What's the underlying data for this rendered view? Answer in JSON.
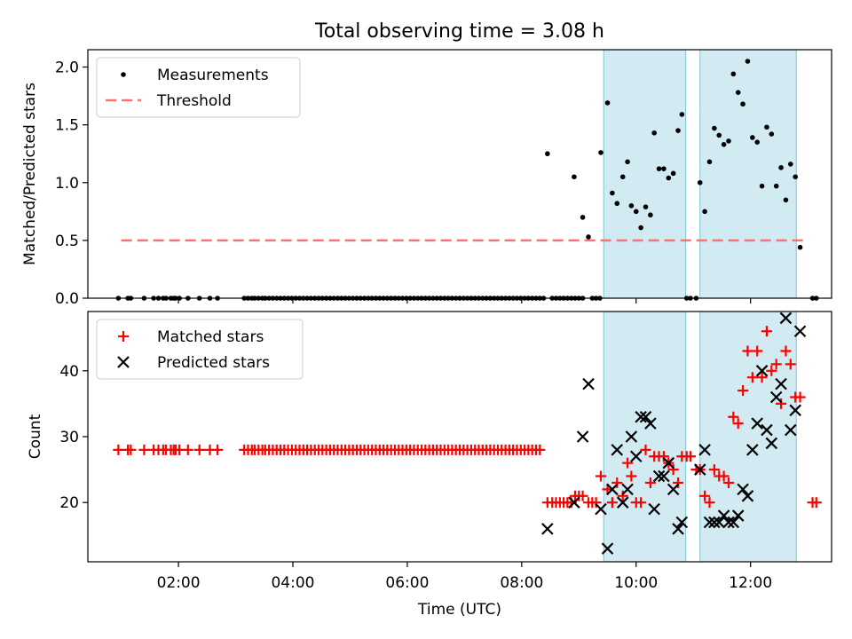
{
  "figure_title": "Total observing time = 3.08 h",
  "colors": {
    "measure": "#000000",
    "threshold": "#ff7070",
    "matched": "#ff0000",
    "predicted": "#000000",
    "span_fill": "#add8e6",
    "span_edge": "#7fc4d4"
  },
  "chart_data": [
    {
      "type": "scatter",
      "title": "",
      "xlabel": "",
      "ylabel": "Matched/Predicted stars",
      "xlim": [
        "00:25",
        "13:25"
      ],
      "ylim": [
        0,
        2.15
      ],
      "yticks": [
        "0.0",
        "0.5",
        "1.0",
        "1.5",
        "2.0"
      ],
      "legend": {
        "placement": "top-left",
        "entries": [
          "Measurements",
          "Threshold"
        ]
      },
      "shaded_spans": [
        [
          "09:26",
          "10:52"
        ],
        [
          "11:07",
          "12:48"
        ]
      ],
      "threshold": {
        "name": "Threshold",
        "y": 0.5,
        "x": [
          "01:00",
          "13:00"
        ]
      },
      "series": [
        {
          "name": "Measurements",
          "zero_times": [
            "00:57",
            "01:07",
            "01:10",
            "01:24",
            "01:34",
            "01:39",
            "01:44",
            "01:47",
            "01:52",
            "01:55",
            "01:57",
            "02:01",
            "02:10",
            "02:22",
            "02:33",
            "02:41",
            "03:09",
            "03:13",
            "03:17",
            "03:20",
            "03:24",
            "03:28",
            "03:31",
            "03:35",
            "03:39",
            "03:43",
            "03:47",
            "03:51",
            "03:55",
            "03:59",
            "04:03",
            "04:07",
            "04:11",
            "04:15",
            "04:19",
            "04:23",
            "04:27",
            "04:31",
            "04:35",
            "04:39",
            "04:43",
            "04:47",
            "04:51",
            "04:55",
            "04:59",
            "05:03",
            "05:07",
            "05:11",
            "05:15",
            "05:19",
            "05:23",
            "05:27",
            "05:31",
            "05:35",
            "05:39",
            "05:43",
            "05:47",
            "05:51",
            "05:55",
            "05:59",
            "06:03",
            "06:07",
            "06:11",
            "06:15",
            "06:19",
            "06:23",
            "06:27",
            "06:31",
            "06:35",
            "06:39",
            "06:43",
            "06:47",
            "06:51",
            "06:55",
            "06:59",
            "07:03",
            "07:07",
            "07:11",
            "07:15",
            "07:19",
            "07:23",
            "07:27",
            "07:31",
            "07:35",
            "07:39",
            "07:43",
            "07:47",
            "07:51",
            "07:55",
            "07:59",
            "08:03",
            "08:07",
            "08:11",
            "08:15",
            "08:19",
            "08:23",
            "08:32",
            "08:36",
            "08:40",
            "08:44",
            "08:48",
            "08:52",
            "08:56",
            "09:00",
            "09:04",
            "09:14",
            "09:18",
            "09:22",
            "10:53",
            "10:57",
            "11:03",
            "13:05",
            "13:09"
          ],
          "points": [
            [
              "08:27",
              1.25
            ],
            [
              "08:55",
              1.05
            ],
            [
              "09:04",
              0.7
            ],
            [
              "09:10",
              0.53
            ],
            [
              "09:23",
              1.26
            ],
            [
              "09:30",
              1.69
            ],
            [
              "09:35",
              0.91
            ],
            [
              "09:40",
              0.82
            ],
            [
              "09:46",
              1.05
            ],
            [
              "09:51",
              1.18
            ],
            [
              "09:55",
              0.8
            ],
            [
              "10:00",
              0.75
            ],
            [
              "10:05",
              0.61
            ],
            [
              "10:10",
              0.79
            ],
            [
              "10:15",
              0.72
            ],
            [
              "10:19",
              1.43
            ],
            [
              "10:24",
              1.12
            ],
            [
              "10:29",
              1.12
            ],
            [
              "10:34",
              1.04
            ],
            [
              "10:39",
              1.08
            ],
            [
              "10:44",
              1.45
            ],
            [
              "10:48",
              1.59
            ],
            [
              "11:07",
              1.0
            ],
            [
              "11:12",
              0.75
            ],
            [
              "11:17",
              1.18
            ],
            [
              "11:22",
              1.47
            ],
            [
              "11:27",
              1.41
            ],
            [
              "11:32",
              1.33
            ],
            [
              "11:37",
              1.36
            ],
            [
              "11:42",
              1.94
            ],
            [
              "11:47",
              1.78
            ],
            [
              "11:52",
              1.68
            ],
            [
              "11:57",
              2.05
            ],
            [
              "12:02",
              1.39
            ],
            [
              "12:07",
              1.35
            ],
            [
              "12:12",
              0.97
            ],
            [
              "12:17",
              1.48
            ],
            [
              "12:22",
              1.42
            ],
            [
              "12:27",
              0.97
            ],
            [
              "12:32",
              1.13
            ],
            [
              "12:37",
              0.85
            ],
            [
              "12:42",
              1.16
            ],
            [
              "12:47",
              1.05
            ],
            [
              "12:52",
              0.44
            ]
          ]
        }
      ]
    },
    {
      "type": "scatter",
      "title": "",
      "xlabel": "Time (UTC)",
      "ylabel": "Count",
      "xlim": [
        "00:25",
        "13:25"
      ],
      "ylim": [
        11,
        49
      ],
      "yticks": [
        "20",
        "30",
        "40"
      ],
      "xticks": [
        "02:00",
        "04:00",
        "06:00",
        "08:00",
        "10:00",
        "12:00"
      ],
      "legend": {
        "placement": "top-left",
        "entries": [
          "Matched stars",
          "Predicted stars"
        ]
      },
      "shaded_spans": [
        [
          "09:26",
          "10:52"
        ],
        [
          "11:07",
          "12:48"
        ]
      ],
      "series": [
        {
          "name": "Matched stars",
          "flat_value": 28,
          "flat_times": [
            "00:57",
            "01:07",
            "01:10",
            "01:24",
            "01:34",
            "01:39",
            "01:44",
            "01:47",
            "01:52",
            "01:55",
            "01:57",
            "02:01",
            "02:10",
            "02:22",
            "02:33",
            "02:41",
            "03:09",
            "03:13",
            "03:17",
            "03:20",
            "03:24",
            "03:28",
            "03:31",
            "03:35",
            "03:39",
            "03:43",
            "03:47",
            "03:51",
            "03:55",
            "03:59",
            "04:03",
            "04:07",
            "04:11",
            "04:15",
            "04:19",
            "04:23",
            "04:27",
            "04:31",
            "04:35",
            "04:39",
            "04:43",
            "04:47",
            "04:51",
            "04:55",
            "04:59",
            "05:03",
            "05:07",
            "05:11",
            "05:15",
            "05:19",
            "05:23",
            "05:27",
            "05:31",
            "05:35",
            "05:39",
            "05:43",
            "05:47",
            "05:51",
            "05:55",
            "05:59",
            "06:03",
            "06:07",
            "06:11",
            "06:15",
            "06:19",
            "06:23",
            "06:27",
            "06:31",
            "06:35",
            "06:39",
            "06:43",
            "06:47",
            "06:51",
            "06:55",
            "06:59",
            "07:03",
            "07:07",
            "07:11",
            "07:15",
            "07:19",
            "07:23",
            "07:27",
            "07:31",
            "07:35",
            "07:39",
            "07:43",
            "07:47",
            "07:51",
            "07:55",
            "07:59",
            "08:03",
            "08:07",
            "08:11",
            "08:15",
            "08:19"
          ],
          "points": [
            [
              "08:27",
              20
            ],
            [
              "08:32",
              20
            ],
            [
              "08:36",
              20
            ],
            [
              "08:40",
              20
            ],
            [
              "08:44",
              20
            ],
            [
              "08:48",
              20
            ],
            [
              "08:52",
              20
            ],
            [
              "08:56",
              21
            ],
            [
              "09:00",
              21
            ],
            [
              "09:04",
              21
            ],
            [
              "09:10",
              20
            ],
            [
              "09:14",
              20
            ],
            [
              "09:18",
              20
            ],
            [
              "09:23",
              24
            ],
            [
              "09:30",
              22
            ],
            [
              "09:35",
              20
            ],
            [
              "09:40",
              23
            ],
            [
              "09:46",
              21
            ],
            [
              "09:51",
              26
            ],
            [
              "09:55",
              24
            ],
            [
              "10:00",
              20
            ],
            [
              "10:05",
              20
            ],
            [
              "10:10",
              28
            ],
            [
              "10:15",
              23
            ],
            [
              "10:19",
              27
            ],
            [
              "10:24",
              27
            ],
            [
              "10:29",
              27
            ],
            [
              "10:34",
              26
            ],
            [
              "10:39",
              25
            ],
            [
              "10:44",
              23
            ],
            [
              "10:48",
              27
            ],
            [
              "10:53",
              27
            ],
            [
              "10:57",
              27
            ],
            [
              "11:03",
              25
            ],
            [
              "11:07",
              25
            ],
            [
              "11:12",
              21
            ],
            [
              "11:17",
              20
            ],
            [
              "11:22",
              25
            ],
            [
              "11:27",
              24
            ],
            [
              "11:32",
              24
            ],
            [
              "11:37",
              23
            ],
            [
              "11:42",
              33
            ],
            [
              "11:47",
              32
            ],
            [
              "11:52",
              37
            ],
            [
              "11:57",
              43
            ],
            [
              "12:02",
              39
            ],
            [
              "12:07",
              43
            ],
            [
              "12:12",
              39
            ],
            [
              "12:17",
              46
            ],
            [
              "12:22",
              40
            ],
            [
              "12:27",
              41
            ],
            [
              "12:32",
              35
            ],
            [
              "12:37",
              43
            ],
            [
              "12:42",
              41
            ],
            [
              "12:47",
              36
            ],
            [
              "12:52",
              36
            ],
            [
              "13:05",
              20
            ],
            [
              "13:09",
              20
            ]
          ]
        },
        {
          "name": "Predicted stars",
          "points": [
            [
              "08:27",
              16
            ],
            [
              "08:55",
              20
            ],
            [
              "09:04",
              30
            ],
            [
              "09:10",
              38
            ],
            [
              "09:23",
              19
            ],
            [
              "09:30",
              13
            ],
            [
              "09:35",
              22
            ],
            [
              "09:40",
              28
            ],
            [
              "09:46",
              20
            ],
            [
              "09:51",
              22
            ],
            [
              "09:55",
              30
            ],
            [
              "10:00",
              27
            ],
            [
              "10:05",
              33
            ],
            [
              "10:10",
              33
            ],
            [
              "10:15",
              32
            ],
            [
              "10:19",
              19
            ],
            [
              "10:24",
              24
            ],
            [
              "10:29",
              24
            ],
            [
              "10:34",
              26
            ],
            [
              "10:39",
              22
            ],
            [
              "10:44",
              16
            ],
            [
              "10:48",
              17
            ],
            [
              "11:07",
              25
            ],
            [
              "11:12",
              28
            ],
            [
              "11:17",
              17
            ],
            [
              "11:22",
              17
            ],
            [
              "11:27",
              17
            ],
            [
              "11:32",
              18
            ],
            [
              "11:37",
              17
            ],
            [
              "11:42",
              17
            ],
            [
              "11:47",
              18
            ],
            [
              "11:52",
              22
            ],
            [
              "11:57",
              21
            ],
            [
              "12:02",
              28
            ],
            [
              "12:07",
              32
            ],
            [
              "12:12",
              40
            ],
            [
              "12:17",
              31
            ],
            [
              "12:22",
              29
            ],
            [
              "12:27",
              36
            ],
            [
              "12:32",
              38
            ],
            [
              "12:37",
              48
            ],
            [
              "12:42",
              31
            ],
            [
              "12:47",
              34
            ],
            [
              "12:52",
              46
            ]
          ]
        }
      ]
    }
  ]
}
